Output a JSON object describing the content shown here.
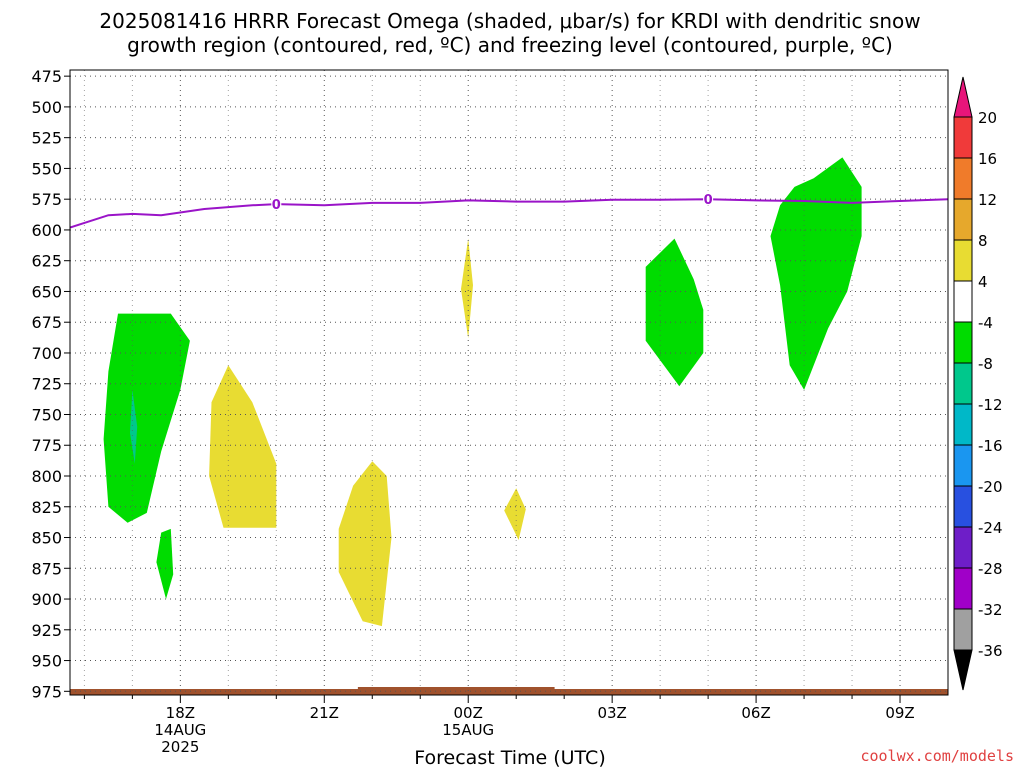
{
  "title_line1": "2025081416 HRRR Forecast Omega (shaded, μbar/s) for KRDI with dendritic snow",
  "title_line2": "growth region (contoured, red, ºC) and freezing level (contoured, purple, ºC)",
  "credit": "coolwx.com/models",
  "chart_data": {
    "type": "contour",
    "xlabel": "Forecast Time (UTC)",
    "x_range_hours": [
      15.7,
      34
    ],
    "x_ticks": [
      {
        "hour": 18,
        "lines": [
          "18Z",
          "14AUG",
          "2025"
        ]
      },
      {
        "hour": 21,
        "lines": [
          "21Z"
        ]
      },
      {
        "hour": 24,
        "lines": [
          "00Z",
          "15AUG"
        ]
      },
      {
        "hour": 27,
        "lines": [
          "03Z"
        ]
      },
      {
        "hour": 30,
        "lines": [
          "06Z"
        ]
      },
      {
        "hour": 33,
        "lines": [
          "09Z"
        ]
      }
    ],
    "y_ticks": [
      475,
      500,
      525,
      550,
      575,
      600,
      625,
      650,
      675,
      700,
      725,
      750,
      775,
      800,
      825,
      850,
      875,
      900,
      925,
      950,
      975
    ],
    "y_range": [
      470,
      978
    ],
    "colorbar": {
      "labels": [
        "20",
        "16",
        "12",
        "8",
        "4",
        "-4",
        "-8",
        "-12",
        "-16",
        "-20",
        "-24",
        "-28",
        "-32",
        "-36"
      ],
      "colors": [
        "#e8157a",
        "#f03a3a",
        "#f07b2a",
        "#e6a82c",
        "#e8dc32",
        "#ffffff",
        "#00dc00",
        "#00c88c",
        "#00b8c8",
        "#1a96f0",
        "#2850e0",
        "#6e1ec8",
        "#a000c8",
        "#a0a0a0",
        "#000000"
      ]
    },
    "freezing_level": {
      "label": "0",
      "label_hours": [
        20,
        29
      ],
      "points": [
        [
          15.7,
          598
        ],
        [
          16.5,
          588
        ],
        [
          17,
          587
        ],
        [
          17.6,
          588
        ],
        [
          18.5,
          583
        ],
        [
          19.5,
          580
        ],
        [
          20,
          579
        ],
        [
          21,
          580
        ],
        [
          22,
          578
        ],
        [
          23,
          578
        ],
        [
          24,
          576
        ],
        [
          25,
          577
        ],
        [
          26,
          577
        ],
        [
          27,
          575.5
        ],
        [
          28,
          575.5
        ],
        [
          29,
          575
        ],
        [
          30,
          576
        ],
        [
          31,
          576.5
        ],
        [
          32,
          578
        ],
        [
          33,
          576.5
        ],
        [
          34,
          575
        ]
      ]
    },
    "shaded_regions": [
      {
        "color": "#00dc00",
        "points": [
          [
            16.7,
            668
          ],
          [
            17.8,
            668
          ],
          [
            18.2,
            690
          ],
          [
            18.0,
            730
          ],
          [
            17.6,
            780
          ],
          [
            17.3,
            830
          ],
          [
            16.9,
            838
          ],
          [
            16.5,
            825
          ],
          [
            16.4,
            770
          ],
          [
            16.5,
            715
          ]
        ]
      },
      {
        "color": "#00c88c",
        "points": [
          [
            17.0,
            730
          ],
          [
            17.1,
            760
          ],
          [
            17.05,
            790
          ],
          [
            16.95,
            765
          ]
        ]
      },
      {
        "color": "#00dc00",
        "points": [
          [
            17.6,
            846
          ],
          [
            17.8,
            843
          ],
          [
            17.85,
            880
          ],
          [
            17.7,
            900
          ],
          [
            17.5,
            870
          ]
        ]
      },
      {
        "color": "#e8dc32",
        "points": [
          [
            19.0,
            710
          ],
          [
            19.5,
            740
          ],
          [
            20.0,
            790
          ],
          [
            20.0,
            842
          ],
          [
            18.9,
            842
          ],
          [
            18.6,
            800
          ],
          [
            18.65,
            740
          ]
        ]
      },
      {
        "color": "#e8dc32",
        "points": [
          [
            22.0,
            788
          ],
          [
            22.3,
            800
          ],
          [
            22.4,
            850
          ],
          [
            22.2,
            922
          ],
          [
            21.8,
            918
          ],
          [
            21.3,
            878
          ],
          [
            21.3,
            843
          ],
          [
            21.6,
            808
          ]
        ]
      },
      {
        "color": "#e8dc32",
        "points": [
          [
            24.0,
            607
          ],
          [
            24.1,
            645
          ],
          [
            24.0,
            688
          ],
          [
            23.85,
            648
          ]
        ]
      },
      {
        "color": "#e8dc32",
        "points": [
          [
            25.0,
            810
          ],
          [
            25.2,
            827
          ],
          [
            25.05,
            852
          ],
          [
            24.75,
            828
          ]
        ]
      },
      {
        "color": "#00dc00",
        "points": [
          [
            28.3,
            607
          ],
          [
            28.7,
            640
          ],
          [
            28.9,
            665
          ],
          [
            28.9,
            700
          ],
          [
            28.4,
            727
          ],
          [
            27.7,
            690
          ],
          [
            27.7,
            630
          ]
        ]
      },
      {
        "color": "#00dc00",
        "points": [
          [
            31.8,
            541
          ],
          [
            32.2,
            565
          ],
          [
            32.2,
            605
          ],
          [
            31.9,
            650
          ],
          [
            31.5,
            680
          ],
          [
            31.0,
            730
          ],
          [
            30.7,
            710
          ],
          [
            30.5,
            645
          ],
          [
            30.3,
            605
          ],
          [
            30.5,
            580
          ],
          [
            30.8,
            565
          ],
          [
            31.2,
            558
          ]
        ]
      }
    ],
    "terrain_color": "#a0522d"
  }
}
